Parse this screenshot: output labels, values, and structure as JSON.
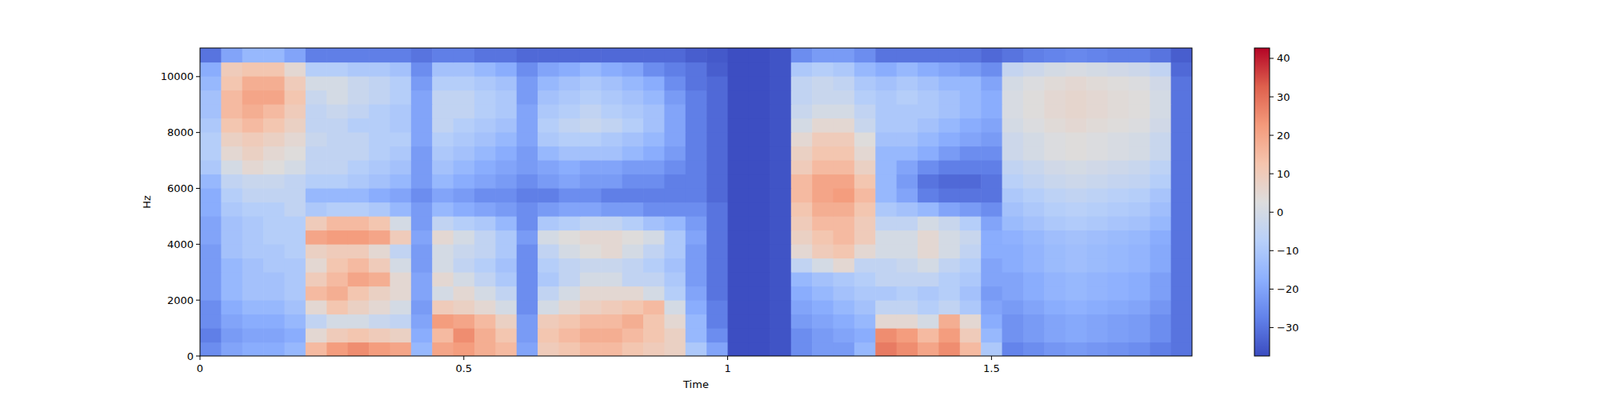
{
  "chart_data": {
    "type": "heatmap",
    "x_label": "Time",
    "y_label": "Hz",
    "xlim": [
      0,
      1.88
    ],
    "ylim": [
      0,
      11025
    ],
    "xticks": [
      0,
      0.5,
      1,
      1.5
    ],
    "yticks": [
      0,
      2000,
      4000,
      6000,
      8000,
      10000
    ],
    "x_edges": [
      0,
      0.04,
      0.08,
      0.12,
      0.16,
      0.2,
      0.24,
      0.28,
      0.32,
      0.36,
      0.4,
      0.44,
      0.48,
      0.52,
      0.56,
      0.6,
      0.64,
      0.68,
      0.72,
      0.76,
      0.8,
      0.84,
      0.88,
      0.92,
      0.96,
      1,
      1.04,
      1.08,
      1.12,
      1.16,
      1.2,
      1.24,
      1.28,
      1.32,
      1.36,
      1.4,
      1.44,
      1.48,
      1.52,
      1.56,
      1.6,
      1.64,
      1.68,
      1.72,
      1.76,
      1.8,
      1.84,
      1.88
    ],
    "y_edges": [
      0,
      501,
      1002,
      1504,
      2005,
      2506,
      3007,
      3508,
      4009,
      4510,
      5011,
      5513,
      6014,
      6515,
      7016,
      7517,
      8018,
      8519,
      9020,
      9521,
      10023,
      10524,
      11025
    ],
    "cells": [
      [
        -25,
        -20,
        -18,
        -18,
        -15,
        15,
        22,
        25,
        22,
        20,
        -15,
        20,
        22,
        18,
        15,
        -20,
        10,
        12,
        15,
        15,
        12,
        10,
        8,
        -10,
        -20,
        -37,
        -37,
        -36,
        -25,
        -22,
        -22,
        -15,
        28,
        25,
        20,
        25,
        15,
        -10,
        -27,
        -25,
        -23,
        -22,
        -23,
        -24,
        -25,
        -28,
        -30
      ],
      [
        -28,
        -22,
        -20,
        -20,
        -18,
        5,
        10,
        12,
        10,
        8,
        -18,
        15,
        25,
        18,
        12,
        -22,
        12,
        15,
        18,
        18,
        15,
        12,
        8,
        -15,
        -25,
        -37,
        -37,
        -36,
        -25,
        -22,
        -20,
        -18,
        25,
        22,
        15,
        22,
        10,
        -15,
        -24,
        -22,
        -20,
        -19,
        -20,
        -21,
        -22,
        -25,
        -30
      ],
      [
        -25,
        -20,
        -18,
        -18,
        -15,
        -5,
        0,
        0,
        -3,
        -5,
        -20,
        22,
        20,
        15,
        8,
        -22,
        10,
        12,
        15,
        15,
        18,
        12,
        5,
        -15,
        -28,
        -37,
        -37,
        -36,
        -22,
        -20,
        -18,
        -15,
        5,
        5,
        0,
        18,
        5,
        -18,
        -24,
        -22,
        -20,
        -19,
        -20,
        -21,
        -22,
        -25,
        -30
      ],
      [
        -25,
        -18,
        -15,
        -15,
        -12,
        5,
        12,
        8,
        5,
        0,
        -22,
        10,
        8,
        5,
        0,
        -25,
        0,
        5,
        8,
        10,
        12,
        15,
        0,
        -18,
        -28,
        -37,
        -37,
        -36,
        -20,
        -18,
        -15,
        -12,
        -5,
        -5,
        -8,
        -5,
        -10,
        -20,
        -22,
        -20,
        -18,
        -17,
        -18,
        -19,
        -20,
        -23,
        -30
      ],
      [
        -22,
        -15,
        -12,
        -12,
        -10,
        15,
        18,
        12,
        8,
        5,
        -20,
        0,
        5,
        0,
        -5,
        -25,
        -5,
        0,
        5,
        5,
        5,
        0,
        -8,
        -20,
        -30,
        -37,
        -37,
        -36,
        -18,
        -15,
        -12,
        -10,
        -10,
        -8,
        -10,
        -8,
        -12,
        -22,
        -20,
        -18,
        -16,
        -15,
        -16,
        -17,
        -18,
        -21,
        -30
      ],
      [
        -22,
        -15,
        -12,
        -12,
        -10,
        10,
        15,
        20,
        18,
        5,
        -20,
        5,
        0,
        -5,
        -10,
        -25,
        -10,
        -5,
        0,
        0,
        -5,
        -5,
        -10,
        -22,
        -30,
        -37,
        -37,
        -36,
        -15,
        -12,
        -10,
        -8,
        -5,
        -5,
        -5,
        -8,
        -10,
        -20,
        -20,
        -18,
        -16,
        -15,
        -16,
        -17,
        -18,
        -21,
        -30
      ],
      [
        -22,
        -15,
        -12,
        -10,
        -10,
        5,
        12,
        15,
        10,
        0,
        -22,
        0,
        -5,
        -8,
        -12,
        -25,
        -8,
        -5,
        -3,
        -3,
        -5,
        -8,
        -12,
        -22,
        -30,
        -37,
        -37,
        -36,
        -5,
        0,
        5,
        -5,
        -5,
        -3,
        0,
        -5,
        -8,
        -20,
        -18,
        -16,
        -14,
        -13,
        -14,
        -15,
        -16,
        -19,
        -30
      ],
      [
        -22,
        -12,
        -10,
        -10,
        -8,
        8,
        10,
        10,
        5,
        -5,
        -22,
        0,
        -3,
        -5,
        -10,
        -25,
        -5,
        0,
        3,
        5,
        0,
        -5,
        -10,
        -22,
        -30,
        -37,
        -37,
        -36,
        5,
        10,
        12,
        5,
        0,
        0,
        5,
        0,
        -5,
        -18,
        -18,
        -16,
        -14,
        -13,
        -14,
        -15,
        -16,
        -19,
        -30
      ],
      [
        -20,
        -12,
        -10,
        -8,
        -8,
        20,
        22,
        22,
        20,
        10,
        -20,
        5,
        0,
        -5,
        -10,
        -22,
        0,
        3,
        5,
        5,
        3,
        0,
        -10,
        -20,
        -30,
        -37,
        -37,
        -36,
        8,
        12,
        15,
        10,
        0,
        0,
        5,
        0,
        -3,
        -18,
        -17,
        -15,
        -13,
        -12,
        -13,
        -14,
        -15,
        -18,
        -30
      ],
      [
        -20,
        -12,
        -10,
        -8,
        -8,
        10,
        15,
        15,
        12,
        0,
        -22,
        -5,
        -8,
        -10,
        -15,
        -25,
        -10,
        -8,
        -5,
        -5,
        -8,
        -12,
        -15,
        -22,
        -30,
        -37,
        -37,
        -36,
        10,
        15,
        15,
        10,
        -5,
        -5,
        0,
        -3,
        -8,
        -20,
        -14,
        -12,
        -10,
        -9,
        -10,
        -11,
        -12,
        -15,
        -30
      ],
      [
        -18,
        -10,
        -8,
        -8,
        -5,
        -10,
        -8,
        -8,
        -10,
        -15,
        -22,
        -15,
        -18,
        -20,
        -22,
        -25,
        -22,
        -20,
        -20,
        -22,
        -22,
        -25,
        -25,
        -25,
        -30,
        -37,
        -37,
        -36,
        12,
        18,
        18,
        12,
        -10,
        -12,
        -15,
        -20,
        -22,
        -25,
        -12,
        -10,
        -8,
        -7,
        -8,
        -9,
        -10,
        -13,
        -30
      ],
      [
        -18,
        -8,
        -5,
        -5,
        -5,
        -15,
        -15,
        -15,
        -18,
        -20,
        -25,
        -20,
        -22,
        -25,
        -25,
        -28,
        -28,
        -25,
        -25,
        -28,
        -28,
        -28,
        -28,
        -28,
        -32,
        -37,
        -37,
        -36,
        15,
        20,
        22,
        15,
        -15,
        -20,
        -28,
        -30,
        -30,
        -30,
        -10,
        -8,
        -6,
        -5,
        -6,
        -7,
        -8,
        -11,
        -30
      ],
      [
        -15,
        -5,
        -3,
        -3,
        -5,
        -8,
        -8,
        -10,
        -12,
        -15,
        -22,
        -15,
        -18,
        -20,
        -22,
        -25,
        -22,
        -20,
        -22,
        -22,
        -25,
        -25,
        -28,
        -28,
        -32,
        -37,
        -37,
        -36,
        15,
        20,
        20,
        12,
        -15,
        -22,
        -30,
        -32,
        -32,
        -30,
        -7,
        -5,
        -3,
        -2,
        -3,
        -4,
        -5,
        -8,
        -30
      ],
      [
        -10,
        0,
        5,
        3,
        0,
        -5,
        -5,
        -8,
        -10,
        -12,
        -22,
        -12,
        -15,
        -18,
        -20,
        -22,
        -20,
        -18,
        -20,
        -20,
        -22,
        -22,
        -25,
        -28,
        -32,
        -37,
        -37,
        -36,
        10,
        15,
        15,
        8,
        -15,
        -20,
        -25,
        -28,
        -28,
        -28,
        -5,
        -3,
        -1,
        0,
        -1,
        -2,
        -3,
        -6,
        -30
      ],
      [
        -8,
        5,
        8,
        5,
        3,
        -5,
        -5,
        -5,
        -8,
        -10,
        -22,
        -10,
        -12,
        -15,
        -18,
        -22,
        -15,
        -12,
        -12,
        -12,
        -15,
        -18,
        -22,
        -28,
        -32,
        -37,
        -37,
        -36,
        8,
        12,
        12,
        5,
        -15,
        -15,
        -18,
        -22,
        -25,
        -25,
        -2,
        0,
        2,
        3,
        2,
        1,
        0,
        -3,
        -30
      ],
      [
        -8,
        8,
        10,
        8,
        5,
        -3,
        -5,
        -5,
        -8,
        -8,
        -20,
        -8,
        -10,
        -12,
        -15,
        -20,
        -10,
        -8,
        -8,
        -10,
        -12,
        -15,
        -20,
        -28,
        -32,
        -37,
        -37,
        -36,
        5,
        10,
        10,
        3,
        -12,
        -12,
        -15,
        -18,
        -20,
        -22,
        -2,
        0,
        2,
        3,
        2,
        1,
        0,
        -3,
        -30
      ],
      [
        -10,
        12,
        15,
        12,
        8,
        -5,
        -5,
        -8,
        -8,
        -10,
        -20,
        -5,
        -8,
        -10,
        -12,
        -20,
        -8,
        -5,
        -3,
        -5,
        -8,
        -12,
        -20,
        -28,
        -32,
        -37,
        -37,
        -36,
        0,
        5,
        5,
        -3,
        -10,
        -10,
        -12,
        -15,
        -18,
        -20,
        0,
        2,
        4,
        5,
        4,
        3,
        2,
        -1,
        -30
      ],
      [
        -12,
        15,
        18,
        15,
        10,
        -5,
        -3,
        -5,
        -8,
        -10,
        -20,
        -5,
        -5,
        -8,
        -10,
        -20,
        -10,
        -8,
        -5,
        -8,
        -10,
        -12,
        -20,
        -28,
        -32,
        -37,
        -37,
        -36,
        -3,
        0,
        0,
        -5,
        -10,
        -10,
        -10,
        -12,
        -15,
        -18,
        1,
        3,
        5,
        6,
        5,
        4,
        3,
        0,
        -30
      ],
      [
        -12,
        15,
        20,
        20,
        12,
        -3,
        0,
        -3,
        -5,
        -8,
        -20,
        -5,
        -5,
        -8,
        -10,
        -22,
        -12,
        -10,
        -8,
        -10,
        -12,
        -15,
        -22,
        -28,
        -32,
        -37,
        -37,
        -36,
        -5,
        -3,
        -3,
        -8,
        -10,
        -8,
        -10,
        -12,
        -15,
        -18,
        1,
        3,
        5,
        6,
        5,
        4,
        3,
        0,
        -30
      ],
      [
        -15,
        12,
        18,
        18,
        10,
        0,
        0,
        -3,
        -5,
        -8,
        -22,
        -8,
        -8,
        -10,
        -12,
        -22,
        -15,
        -12,
        -10,
        -12,
        -15,
        -18,
        -25,
        -30,
        -32,
        -37,
        -37,
        -36,
        -5,
        -3,
        -5,
        -10,
        -12,
        -10,
        -12,
        -15,
        -15,
        -20,
        0,
        2,
        4,
        5,
        4,
        3,
        2,
        -1,
        -30
      ],
      [
        -18,
        10,
        12,
        12,
        5,
        -8,
        -8,
        -10,
        -10,
        -12,
        -25,
        -12,
        -12,
        -15,
        -18,
        -25,
        -20,
        -18,
        -15,
        -18,
        -20,
        -25,
        -28,
        -30,
        -34,
        -37,
        -37,
        -36,
        -10,
        -8,
        -10,
        -15,
        -18,
        -15,
        -18,
        -20,
        -22,
        -25,
        -4,
        -2,
        0,
        1,
        0,
        -1,
        -2,
        -5,
        -32
      ],
      [
        -30,
        -20,
        -15,
        -15,
        -20,
        -28,
        -28,
        -28,
        -28,
        -28,
        -30,
        -28,
        -28,
        -30,
        -30,
        -32,
        -32,
        -32,
        -32,
        -32,
        -32,
        -32,
        -32,
        -34,
        -35,
        -37,
        -37,
        -36,
        -25,
        -22,
        -22,
        -25,
        -30,
        -30,
        -30,
        -30,
        -30,
        -32,
        -30,
        -28,
        -27,
        -26,
        -27,
        -28,
        -28,
        -30,
        -34
      ]
    ],
    "colorbar_range": [
      -37.4,
      42.7
    ],
    "colorbar_ticks": [
      {
        "value": -30,
        "label": "−30"
      },
      {
        "value": -20,
        "label": "−20"
      },
      {
        "value": -10,
        "label": "−10"
      },
      0,
      10,
      20,
      30,
      40
    ]
  }
}
